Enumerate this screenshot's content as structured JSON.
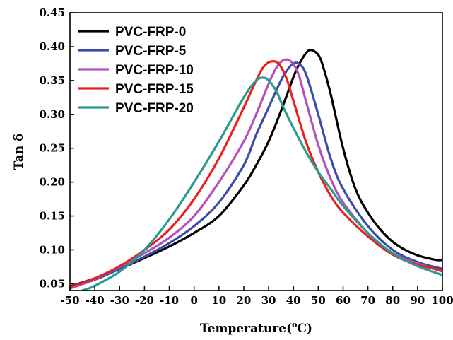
{
  "chart_data": {
    "type": "line",
    "title": "",
    "xlabel": "Temperature(",
    "xlabel_sup": "o",
    "xlabel_tail": "C)",
    "ylabel": "Tan δ",
    "xlim": [
      -50,
      100
    ],
    "ylim": [
      0.04,
      0.45
    ],
    "xticks": [
      "-50",
      "-40",
      "-30",
      "-20",
      "-10",
      "0",
      "10",
      "20",
      "30",
      "40",
      "50",
      "60",
      "70",
      "80",
      "90",
      "100"
    ],
    "yticks": [
      "0.05",
      "0.10",
      "0.15",
      "0.20",
      "0.25",
      "0.30",
      "0.35",
      "0.40",
      "0.45"
    ],
    "grid": false,
    "legend_position": "top-left",
    "series": [
      {
        "name": "PVC-FRP-0",
        "color": "#000000",
        "x": [
          -50,
          -40,
          -30,
          -20,
          -10,
          0,
          10,
          20,
          25,
          30,
          35,
          40,
          42,
          45,
          47,
          50,
          52,
          55,
          60,
          65,
          70,
          75,
          80,
          85,
          90,
          95,
          98,
          100
        ],
        "y": [
          0.046,
          0.058,
          0.072,
          0.088,
          0.105,
          0.125,
          0.15,
          0.195,
          0.225,
          0.26,
          0.305,
          0.355,
          0.372,
          0.39,
          0.395,
          0.388,
          0.37,
          0.33,
          0.25,
          0.19,
          0.155,
          0.13,
          0.112,
          0.1,
          0.092,
          0.087,
          0.085,
          0.085
        ]
      },
      {
        "name": "PVC-FRP-5",
        "color": "#3a4ca8",
        "x": [
          -50,
          -40,
          -30,
          -20,
          -10,
          0,
          10,
          20,
          25,
          30,
          35,
          38,
          40,
          42,
          45,
          50,
          55,
          60,
          70,
          80,
          90,
          100
        ],
        "y": [
          0.044,
          0.056,
          0.072,
          0.09,
          0.11,
          0.135,
          0.17,
          0.225,
          0.27,
          0.31,
          0.35,
          0.368,
          0.375,
          0.375,
          0.36,
          0.3,
          0.235,
          0.19,
          0.135,
          0.1,
          0.082,
          0.072
        ]
      },
      {
        "name": "PVC-FRP-10",
        "color": "#b44fc0",
        "x": [
          -50,
          -40,
          -30,
          -20,
          -10,
          0,
          10,
          20,
          25,
          30,
          33,
          36,
          39,
          42,
          45,
          50,
          55,
          60,
          70,
          80,
          90,
          100
        ],
        "y": [
          0.043,
          0.057,
          0.075,
          0.095,
          0.118,
          0.15,
          0.2,
          0.26,
          0.3,
          0.345,
          0.368,
          0.38,
          0.378,
          0.36,
          0.32,
          0.255,
          0.205,
          0.17,
          0.125,
          0.095,
          0.08,
          0.068
        ]
      },
      {
        "name": "PVC-FRP-15",
        "color": "#e8201e",
        "x": [
          -50,
          -40,
          -30,
          -20,
          -10,
          0,
          10,
          20,
          25,
          28,
          31,
          34,
          37,
          40,
          45,
          50,
          55,
          60,
          70,
          80,
          90,
          100
        ],
        "y": [
          0.045,
          0.058,
          0.076,
          0.1,
          0.13,
          0.175,
          0.235,
          0.31,
          0.35,
          0.37,
          0.378,
          0.375,
          0.355,
          0.32,
          0.26,
          0.215,
          0.18,
          0.155,
          0.12,
          0.093,
          0.078,
          0.07
        ]
      },
      {
        "name": "PVC-FRP-20",
        "color": "#2a9a8e",
        "x": [
          -45,
          -40,
          -30,
          -20,
          -10,
          0,
          10,
          20,
          25,
          28,
          30,
          33,
          36,
          40,
          45,
          50,
          55,
          60,
          70,
          80,
          90,
          100
        ],
        "y": [
          0.04,
          0.047,
          0.068,
          0.1,
          0.145,
          0.2,
          0.26,
          0.325,
          0.35,
          0.354,
          0.35,
          0.335,
          0.31,
          0.28,
          0.245,
          0.215,
          0.19,
          0.165,
          0.125,
          0.095,
          0.076,
          0.063
        ]
      }
    ]
  }
}
